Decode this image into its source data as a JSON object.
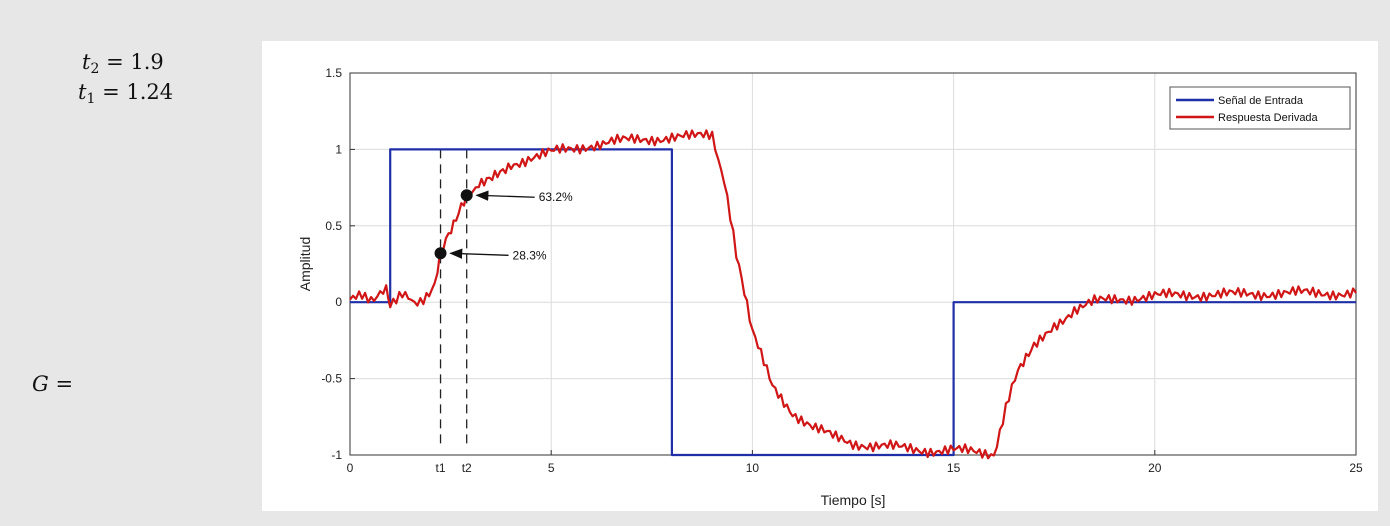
{
  "equations": {
    "t2": {
      "var": "t",
      "sub": "2",
      "rhs": "= 1.9"
    },
    "t1": {
      "var": "t",
      "sub": "1",
      "rhs": "= 1.24"
    },
    "g": {
      "lhs": "G",
      "rhs": "="
    }
  },
  "chart_data": {
    "type": "line",
    "xlabel": "Tiempo [s]",
    "ylabel": "Amplitud",
    "xlim": [
      0,
      25
    ],
    "ylim": [
      -1,
      1.5
    ],
    "xticks": [
      0,
      5,
      10,
      15,
      20,
      25
    ],
    "xtick_labels": [
      "0",
      "5",
      "10",
      "15",
      "20",
      "25"
    ],
    "yticks": [
      -1,
      -0.5,
      0,
      0.5,
      1,
      1.5
    ],
    "ytick_labels": [
      "-1",
      "-0.5",
      "0",
      "0.5",
      "1",
      "1.5"
    ],
    "extra_xtick_labels": [
      {
        "x": 2.25,
        "label": "t1"
      },
      {
        "x": 2.9,
        "label": "t2"
      }
    ],
    "grid": true,
    "legend_position": "top-right",
    "series": [
      {
        "name": "Señal de Entrada",
        "color": "#1f2fa8",
        "x": [
          0,
          1,
          1,
          8,
          8,
          15,
          15,
          25
        ],
        "y": [
          0,
          0,
          1,
          1,
          -1,
          -1,
          0,
          0
        ]
      },
      {
        "name": "Respuesta Derivada",
        "color": "#d01616",
        "x": [
          0,
          0.3,
          0.6,
          0.9,
          1.0,
          1.3,
          1.6,
          1.9,
          2.1,
          2.25,
          2.45,
          2.7,
          2.9,
          3.2,
          3.6,
          4.0,
          4.5,
          5.0,
          5.5,
          6.0,
          6.5,
          7.0,
          7.5,
          8.0,
          8.5,
          9.0,
          9.3,
          9.6,
          10.0,
          10.5,
          11.0,
          11.5,
          12.0,
          12.5,
          13.0,
          13.5,
          14.0,
          14.5,
          15.0,
          15.5,
          16.0,
          16.3,
          16.6,
          17.0,
          17.5,
          18.0,
          18.5,
          19.0,
          19.5,
          20.0,
          21.0,
          22.0,
          23.0,
          24.0,
          25.0
        ],
        "y": [
          0.0,
          0.06,
          0.02,
          0.07,
          0.0,
          0.04,
          0.0,
          0.04,
          0.12,
          0.32,
          0.45,
          0.6,
          0.7,
          0.78,
          0.85,
          0.9,
          0.95,
          0.98,
          1.0,
          1.03,
          1.05,
          1.06,
          1.07,
          1.08,
          1.08,
          1.1,
          0.8,
          0.3,
          -0.2,
          -0.55,
          -0.72,
          -0.82,
          -0.88,
          -0.92,
          -0.94,
          -0.95,
          -0.96,
          -0.97,
          -0.97,
          -0.98,
          -0.99,
          -0.7,
          -0.45,
          -0.3,
          -0.15,
          -0.05,
          0.0,
          0.02,
          0.03,
          0.04,
          0.05,
          0.05,
          0.06,
          0.06,
          0.06
        ]
      }
    ],
    "points": [
      {
        "x": 2.25,
        "y": 0.32,
        "label": "28.3%"
      },
      {
        "x": 2.9,
        "y": 0.7,
        "label": "63.2%"
      }
    ],
    "guide_lines_x": [
      2.25,
      2.9
    ]
  }
}
